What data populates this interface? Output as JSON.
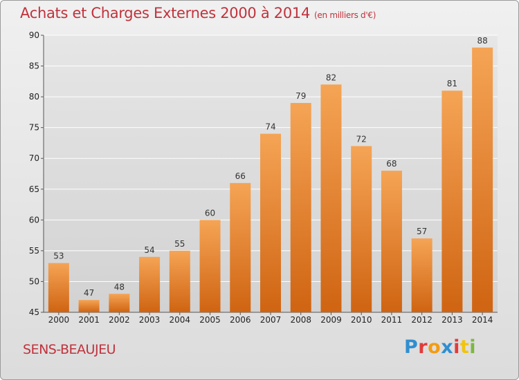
{
  "header": {
    "title": "Achats et Charges Externes 2000 à 2014",
    "subtitle": "(en milliers d'€)"
  },
  "footer": {
    "commune": "SENS-BEAUJEU",
    "logo_text": "Proxiti",
    "logo_colors": [
      "#2f8fd0",
      "#e23b3b",
      "#f39c12",
      "#2f8fd0",
      "#e23b3b",
      "#f1c40f",
      "#7bb843"
    ]
  },
  "colors": {
    "bar_top": "#f5a455",
    "bar_bottom": "#cf6412",
    "grid": "#ffffff",
    "plot_bg_top": "#e6e6e6",
    "plot_bg_bottom": "#d2d2d2"
  },
  "chart_data": {
    "type": "bar",
    "title": "Achats et Charges Externes 2000 à 2014",
    "subtitle": "(en milliers d'€)",
    "categories": [
      "2000",
      "2001",
      "2002",
      "2003",
      "2004",
      "2005",
      "2006",
      "2007",
      "2008",
      "2009",
      "2010",
      "2011",
      "2012",
      "2013",
      "2014"
    ],
    "values": [
      53,
      47,
      48,
      54,
      55,
      60,
      66,
      74,
      79,
      82,
      72,
      68,
      57,
      81,
      88
    ],
    "xlabel": "",
    "ylabel": "",
    "ylim": [
      45,
      90
    ],
    "yticks": [
      45,
      50,
      55,
      60,
      65,
      70,
      75,
      80,
      85,
      90
    ],
    "grid": true,
    "data_labels": true
  }
}
